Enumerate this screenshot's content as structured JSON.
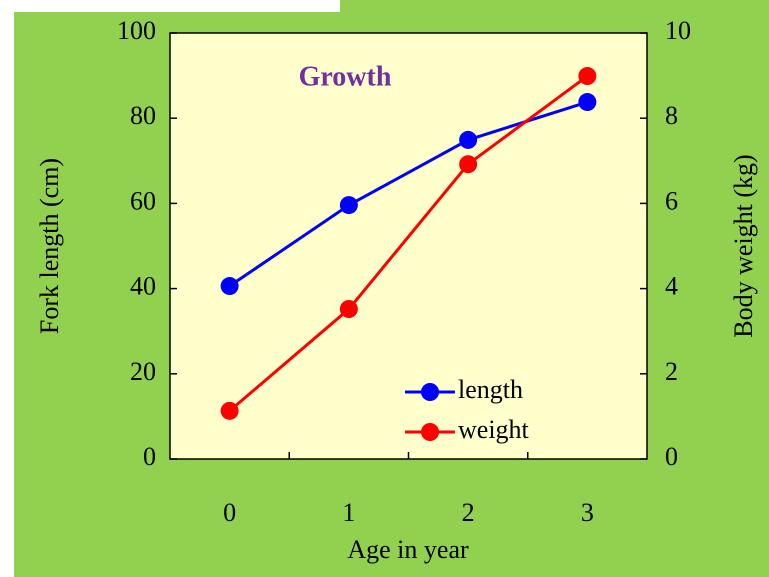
{
  "chart_data": {
    "type": "line",
    "title": "Growth",
    "x_label": "Age in year",
    "y_label": "Fork length (cm)",
    "y2_label": "Body weight (kg)",
    "categories": [
      "0",
      "1",
      "2",
      "3"
    ],
    "series": [
      {
        "name": "length",
        "color": "#0000ff",
        "values": [
          40.6,
          59.6,
          74.9,
          83.8
        ]
      },
      {
        "name": "weight",
        "color": "#ff0000",
        "axis": "y2",
        "values": [
          1.13,
          3.52,
          6.92,
          8.99
        ]
      }
    ],
    "ylim": [
      0,
      100
    ],
    "yticks": [
      0,
      20,
      40,
      60,
      80,
      100
    ],
    "y2lim": [
      0,
      10
    ],
    "y2ticks": [
      0,
      2,
      4,
      6,
      8,
      10
    ],
    "legend": "lower right",
    "grid": false
  }
}
